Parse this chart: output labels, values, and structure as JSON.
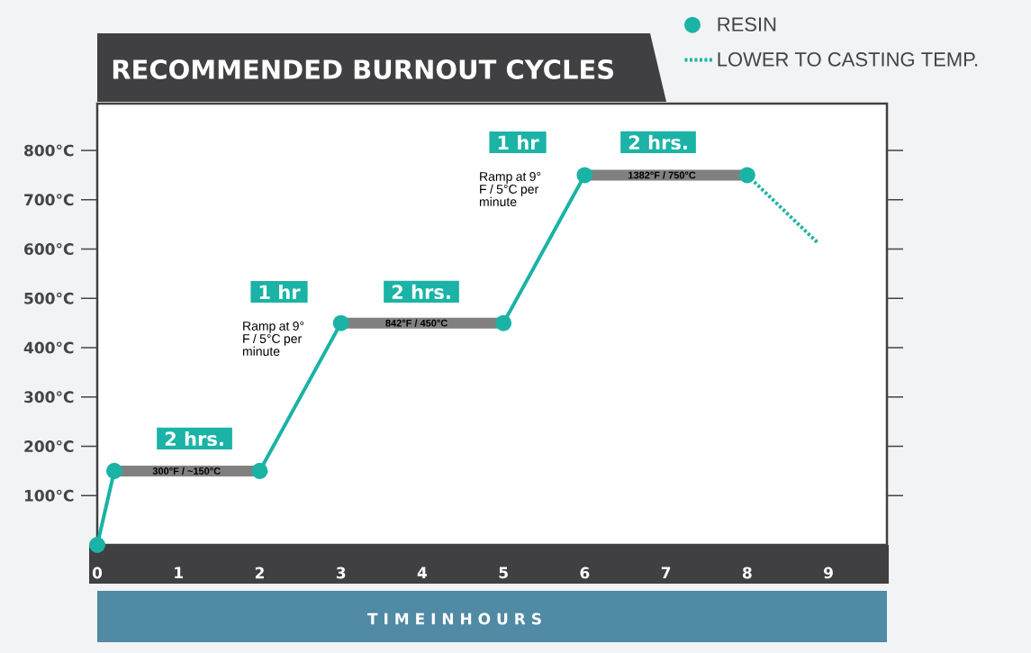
{
  "chart_data": {
    "type": "line",
    "title": "RECOMMENDED BURNOUT CYCLES",
    "xlabel": "T I M E I N H O U R S",
    "xlim": [
      0,
      9.72
    ],
    "ylim": [
      0,
      895
    ],
    "xticks": [
      0,
      1,
      2,
      3,
      4,
      5,
      6,
      7,
      8,
      9
    ],
    "yticks": [
      {
        "value": 100,
        "label": "100°C"
      },
      {
        "value": 200,
        "label": "200°C"
      },
      {
        "value": 300,
        "label": "300°C"
      },
      {
        "value": 400,
        "label": "400°C"
      },
      {
        "value": 500,
        "label": "500°C"
      },
      {
        "value": 600,
        "label": "600°C"
      },
      {
        "value": 700,
        "label": "700°C"
      },
      {
        "value": 800,
        "label": "800°C"
      }
    ],
    "legend": "top right",
    "series": [
      {
        "color": "#808080",
        "x": [
          0.21,
          2,
          2.5,
          3,
          5,
          5.5,
          6,
          8
        ],
        "values": [
          150,
          150,
          null,
          450,
          450,
          null,
          750,
          750
        ],
        "marker": "none",
        "line_style": "solid"
      },
      {
        "name": "RESIN",
        "color": "#1ab3a6",
        "x": [
          0,
          0.21,
          1,
          2,
          3,
          4,
          5,
          6,
          7,
          8
        ],
        "values": [
          0,
          150,
          null,
          150,
          450,
          null,
          450,
          750,
          null,
          750
        ],
        "marker": "circle",
        "line_style": "solid"
      },
      {
        "name": "LOWER TO CASTING TEMP.",
        "color": "#1ab3a6",
        "x": [
          8,
          8.86
        ],
        "values": [
          750,
          614
        ],
        "marker": "none",
        "line_style": "dashed"
      }
    ],
    "annotations": [
      "2 hrs.",
      {
        "text": "300°F / ~150°C",
        "x": 1.1,
        "y": 150
      },
      "1 hr",
      "Ramp at 9° F / 5°C per minute",
      "2 hrs.",
      {
        "text": "842°F / 450°C",
        "x": 3.93,
        "y": 450
      },
      "1 hr",
      "Ramp at 9° F / 5°C per minute",
      "2 hrs.",
      {
        "text": "1382°F / 750°C",
        "x": 6.95,
        "y": 750
      }
    ]
  }
}
